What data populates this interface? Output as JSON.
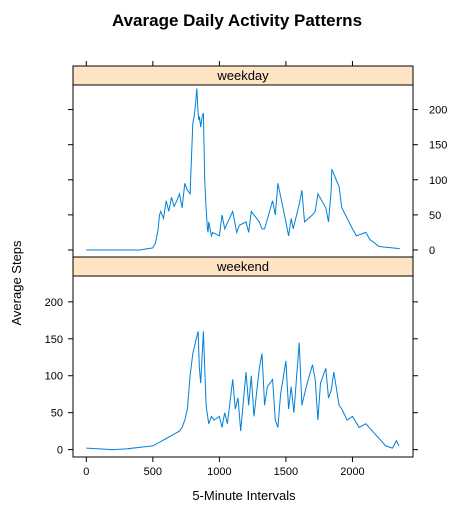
{
  "chart_data": {
    "type": "line",
    "title": "Avarage Daily Activity Patterns",
    "xlabel": "5-Minute Intervals",
    "ylabel": "Average Steps",
    "xlim": [
      -100,
      2455
    ],
    "ylim": [
      -10,
      235
    ],
    "x_ticks": [
      0,
      500,
      1000,
      1500,
      2000
    ],
    "y_ticks": [
      0,
      50,
      100,
      150,
      200
    ],
    "layout": "two stacked panels with strip titles",
    "strip_color": "#ffe4c4",
    "line_color": "#0080d8",
    "panels": [
      {
        "name": "weekday",
        "y_tick_side": "right",
        "x": [
          0,
          100,
          200,
          300,
          400,
          500,
          520,
          540,
          550,
          560,
          580,
          600,
          620,
          640,
          660,
          680,
          700,
          720,
          740,
          760,
          780,
          800,
          810,
          820,
          830,
          835,
          840,
          845,
          850,
          860,
          870,
          880,
          890,
          900,
          910,
          915,
          920,
          930,
          940,
          950,
          1000,
          1020,
          1040,
          1100,
          1130,
          1150,
          1200,
          1220,
          1240,
          1300,
          1320,
          1340,
          1400,
          1420,
          1440,
          1500,
          1520,
          1540,
          1555,
          1600,
          1620,
          1640,
          1700,
          1720,
          1740,
          1800,
          1820,
          1840,
          1845,
          1900,
          1920,
          2000,
          2030,
          2100,
          2130,
          2200,
          2300,
          2355
        ],
        "values": [
          0,
          0,
          0,
          0,
          0,
          3,
          10,
          30,
          50,
          55,
          45,
          70,
          55,
          75,
          62,
          70,
          80,
          60,
          95,
          85,
          80,
          180,
          190,
          205,
          230,
          215,
          195,
          185,
          190,
          175,
          190,
          195,
          100,
          60,
          30,
          25,
          40,
          30,
          20,
          25,
          20,
          50,
          30,
          55,
          25,
          35,
          40,
          25,
          55,
          40,
          30,
          30,
          70,
          50,
          95,
          40,
          20,
          45,
          30,
          65,
          85,
          40,
          50,
          55,
          80,
          60,
          40,
          85,
          115,
          90,
          60,
          30,
          20,
          25,
          15,
          5,
          3,
          2
        ]
      },
      {
        "name": "weekend",
        "y_tick_side": "left",
        "x": [
          0,
          100,
          200,
          300,
          400,
          500,
          550,
          600,
          650,
          700,
          720,
          740,
          760,
          780,
          800,
          820,
          840,
          850,
          860,
          880,
          900,
          920,
          940,
          960,
          1000,
          1020,
          1040,
          1060,
          1100,
          1120,
          1140,
          1160,
          1200,
          1220,
          1240,
          1260,
          1300,
          1320,
          1340,
          1360,
          1400,
          1420,
          1440,
          1460,
          1500,
          1520,
          1540,
          1560,
          1600,
          1620,
          1640,
          1660,
          1700,
          1720,
          1740,
          1760,
          1800,
          1820,
          1840,
          1860,
          1900,
          1920,
          1960,
          2000,
          2050,
          2100,
          2150,
          2200,
          2250,
          2300,
          2330,
          2350
        ],
        "values": [
          2,
          1,
          0,
          1,
          3,
          5,
          10,
          15,
          20,
          25,
          30,
          40,
          55,
          100,
          130,
          145,
          160,
          110,
          90,
          160,
          60,
          35,
          45,
          40,
          45,
          30,
          50,
          35,
          95,
          55,
          70,
          25,
          105,
          60,
          100,
          45,
          110,
          130,
          60,
          85,
          95,
          40,
          30,
          75,
          120,
          55,
          85,
          50,
          145,
          60,
          75,
          90,
          115,
          95,
          40,
          90,
          110,
          70,
          80,
          105,
          60,
          55,
          40,
          45,
          30,
          35,
          25,
          15,
          5,
          2,
          12,
          5
        ]
      }
    ]
  }
}
